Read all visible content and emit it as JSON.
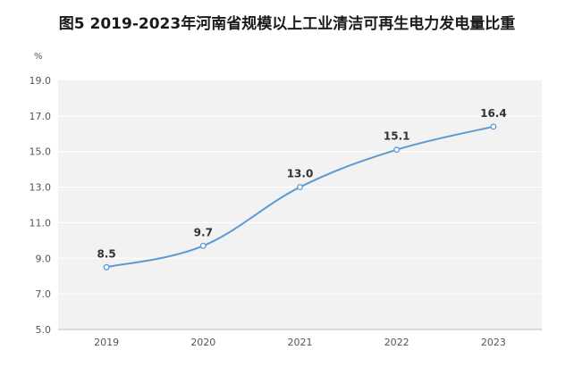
{
  "chart_data": {
    "type": "line",
    "title": "图5   2019-2023年河南省规模以上工业清洁可再生电力发电量比重",
    "y_unit": "%",
    "categories": [
      "2019",
      "2020",
      "2021",
      "2022",
      "2023"
    ],
    "series": [
      {
        "values": [
          8.5,
          9.7,
          13.0,
          15.1,
          16.4
        ],
        "labels": [
          "8.5",
          "9.7",
          "13.0",
          "15.1",
          "16.4"
        ]
      }
    ],
    "yticks": [
      "5.0",
      "7.0",
      "9.0",
      "11.0",
      "13.0",
      "15.0",
      "17.0",
      "19.0"
    ],
    "ylim": [
      5,
      19
    ],
    "grid": true,
    "line_color": "#5b9bd5",
    "plot_bg": "#f2f2f2",
    "grid_color": "#ffffff"
  }
}
